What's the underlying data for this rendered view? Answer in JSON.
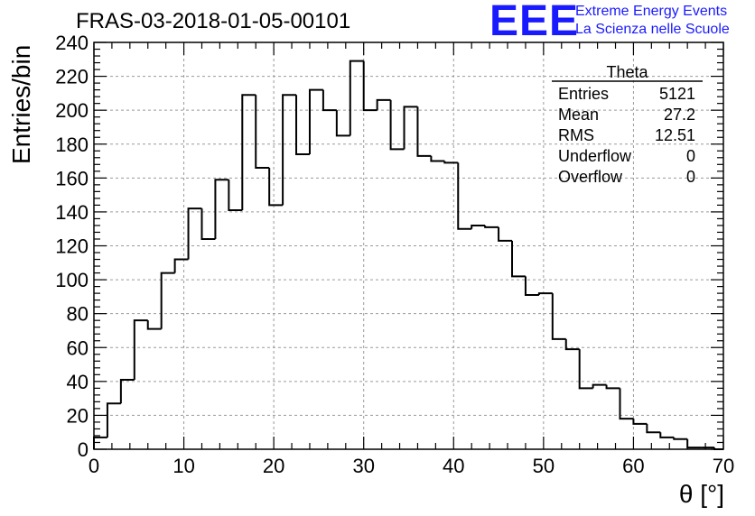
{
  "chart_data": {
    "type": "histogram",
    "title": "FRAS-03-2018-01-05-00101",
    "xlabel": "θ [°]",
    "ylabel": "Entries/bin",
    "xlim": [
      0,
      70
    ],
    "ylim": [
      0,
      240
    ],
    "x_ticks": [
      0,
      10,
      20,
      30,
      40,
      50,
      60,
      70
    ],
    "y_ticks": [
      0,
      20,
      40,
      60,
      80,
      100,
      120,
      140,
      160,
      180,
      200,
      220,
      240
    ],
    "grid": true,
    "bin_width": 1.5,
    "bin_start": 0,
    "values": [
      7,
      27,
      41,
      76,
      71,
      104,
      112,
      142,
      124,
      159,
      141,
      209,
      166,
      144,
      209,
      174,
      212,
      200,
      185,
      229,
      200,
      206,
      177,
      202,
      173,
      170,
      169,
      130,
      132,
      131,
      123,
      102,
      91,
      92,
      65,
      59,
      36,
      38,
      36,
      18,
      15,
      10,
      7,
      6,
      1,
      1,
      0
    ],
    "stats_box": {
      "title": "Theta",
      "rows": [
        {
          "label": "Entries",
          "value": "5121"
        },
        {
          "label": "Mean",
          "value": "27.2"
        },
        {
          "label": "RMS",
          "value": "12.51"
        },
        {
          "label": "Underflow",
          "value": "0"
        },
        {
          "label": "Overflow",
          "value": "0"
        }
      ]
    }
  },
  "logo": {
    "mark": "EEE",
    "line1": "Extreme Energy Events",
    "line2": "La Scienza nelle Scuole",
    "color": "#1a1aff"
  }
}
